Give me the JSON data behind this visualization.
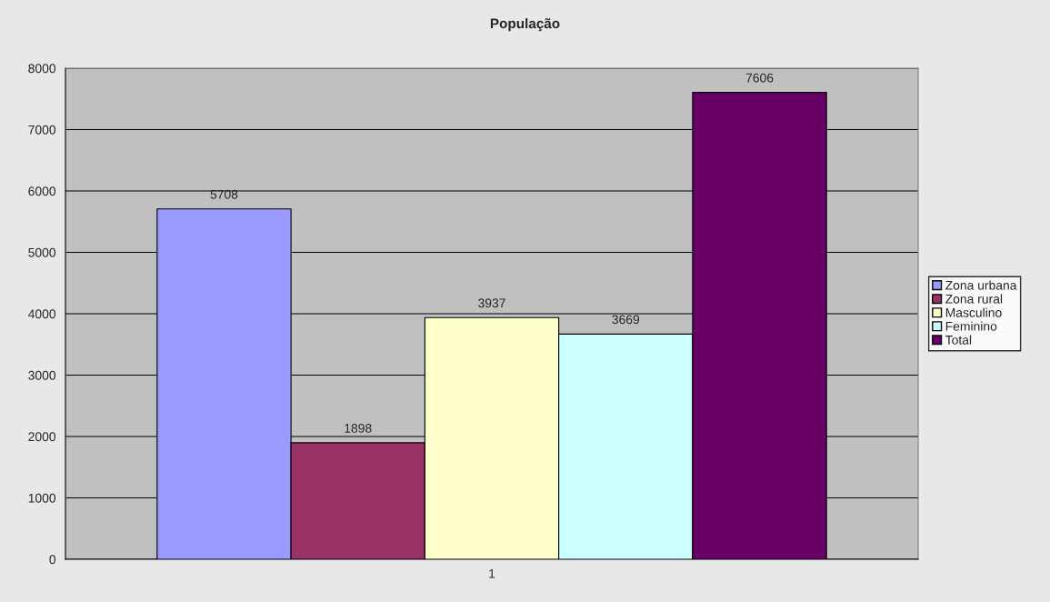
{
  "chart_data": {
    "type": "bar",
    "title": "População",
    "categories": [
      "1"
    ],
    "series": [
      {
        "name": "Zona urbana",
        "color": "#9999ff",
        "values": [
          5708
        ]
      },
      {
        "name": "Zona rural",
        "color": "#993366",
        "values": [
          1898
        ]
      },
      {
        "name": "Masculino",
        "color": "#ffffcc",
        "values": [
          3937
        ]
      },
      {
        "name": "Feminino",
        "color": "#ccffff",
        "values": [
          3669
        ]
      },
      {
        "name": "Total",
        "color": "#660066",
        "values": [
          7606
        ]
      }
    ],
    "ylim": [
      0,
      8000
    ],
    "yticks": [
      0,
      1000,
      2000,
      3000,
      4000,
      5000,
      6000,
      7000,
      8000
    ],
    "grid": "y",
    "legend": "right",
    "data_labels": true
  }
}
